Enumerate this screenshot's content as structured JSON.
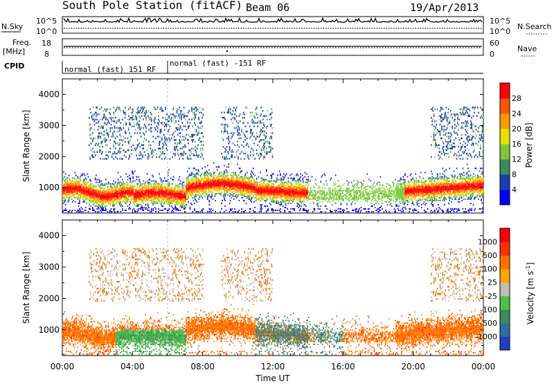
{
  "header": {
    "station_title": "South Pole Station (fitACF)",
    "beam": "Beam 06",
    "date": "19/Apr/2013"
  },
  "aux_panels": {
    "nsky_label": "N.Sky",
    "nsky_ticks": [
      "10^5",
      "10^0"
    ],
    "nsearch_label": "N.Search",
    "nsearch_ticks": [
      "10^5",
      "10^0"
    ],
    "freq_label": "Freq.",
    "freq_unit": "[MHz]",
    "freq_ticks": [
      "18",
      "8"
    ],
    "nave_label": "Nave",
    "nave_ticks": [
      "60",
      "0"
    ],
    "cpid_label": "CPID",
    "cpid_segments": [
      {
        "label": "normal (fast) 151 RF",
        "start_hour": 0,
        "end_hour": 6
      },
      {
        "label": "normal (fast) -151 RF",
        "start_hour": 6,
        "end_hour": 24
      }
    ]
  },
  "chart_data": [
    {
      "type": "heatmap",
      "title": "",
      "xlabel": "",
      "ylabel": "Slant Range [km]",
      "xlim": [
        0,
        24
      ],
      "ylim": [
        180,
        4500
      ],
      "yticks": [
        "1000",
        "2000",
        "3000",
        "4000"
      ],
      "colorbar": {
        "label": "Power [dB]",
        "ticks": [
          "4",
          "8",
          "12",
          "16",
          "20",
          "24",
          "28"
        ],
        "colors": [
          "#0000ff",
          "#1a3fb3",
          "#3a8c5a",
          "#7cc83a",
          "#e8e000",
          "#ff9900",
          "#ff5500",
          "#ff0000"
        ]
      }
    },
    {
      "type": "heatmap",
      "title": "",
      "xlabel": "Time UT",
      "ylabel": "Slant Range [km]",
      "xlim": [
        0,
        24
      ],
      "ylim": [
        180,
        4500
      ],
      "yticks": [
        "1000",
        "2000",
        "3000",
        "4000"
      ],
      "xticks": [
        "00:00",
        "04:00",
        "08:00",
        "12:00",
        "16:00",
        "20:00",
        "00:00"
      ],
      "colorbar": {
        "label": "Velocity [m s",
        "label_sup": "-1",
        "label_end": "]",
        "ticks": [
          "1000",
          "500",
          "100",
          "25",
          "-25",
          "-100",
          "-500",
          "-1000"
        ],
        "colors": [
          "#2040c0",
          "#2f6fa0",
          "#3a8c5a",
          "#4fc040",
          "#c0c0b0",
          "#ffa500",
          "#ff7000",
          "#ff3000",
          "#ff0000"
        ]
      }
    }
  ]
}
